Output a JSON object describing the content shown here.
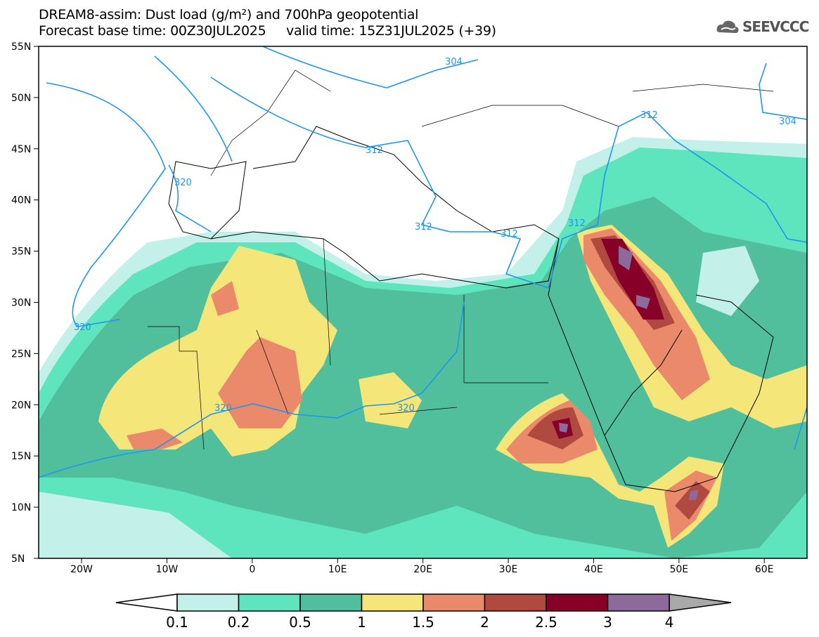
{
  "header": {
    "title_line1": "DREAM8-assim: Dust load (g/m²) and 700hPa geopotential",
    "title_line2": "Forecast base time: 00Z30JUL2025     valid time: 15Z31JUL2025 (+39)",
    "logo": "SEEVCCC"
  },
  "axes": {
    "lat_labels": [
      "55N",
      "50N",
      "45N",
      "40N",
      "35N",
      "30N",
      "25N",
      "20N",
      "15N",
      "10N",
      "5N"
    ],
    "lon_labels": [
      "20W",
      "10W",
      "0",
      "10E",
      "20E",
      "30E",
      "40E",
      "50E",
      "60E"
    ]
  },
  "contours": {
    "labels": [
      "304",
      "304",
      "312",
      "312",
      "312",
      "312",
      "312",
      "320",
      "320",
      "320",
      "320"
    ]
  },
  "colorbar": {
    "ticks": [
      "0.1",
      "0.2",
      "0.5",
      "1",
      "1.5",
      "2",
      "2.5",
      "3",
      "4"
    ],
    "colors": [
      "#c3f0e9",
      "#5ee5bd",
      "#52bf9c",
      "#f5e67a",
      "#ea8a6a",
      "#b04a40",
      "#870028",
      "#8c6a9c"
    ],
    "over_color": "#a9a9a9",
    "under_color": "#ffffff"
  }
}
